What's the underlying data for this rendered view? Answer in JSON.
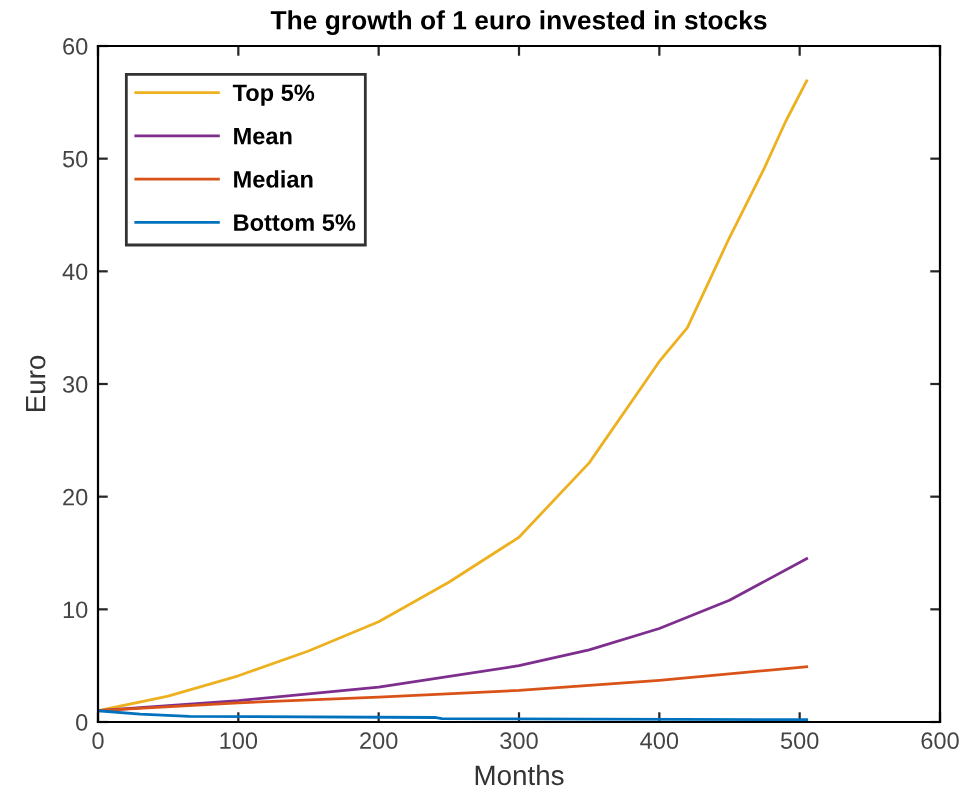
{
  "chart_data": {
    "type": "line",
    "title": "The growth of 1 euro invested in stocks",
    "xlabel": "Months",
    "ylabel": "Euro",
    "xlim": [
      0,
      600
    ],
    "xticks": [
      0,
      100,
      200,
      300,
      400,
      500,
      600
    ],
    "ylim": [
      0,
      60
    ],
    "yticks": [
      0,
      10,
      20,
      30,
      40,
      50,
      60
    ],
    "grid": false,
    "legend": "top left",
    "marker": "none",
    "line_style": "solid",
    "series": [
      {
        "name": "Top 5%",
        "color": "#edb120",
        "x": [
          0,
          50,
          100,
          150,
          200,
          250,
          300,
          350,
          400,
          420,
          450,
          475,
          490,
          505
        ],
        "values": [
          1,
          2.3,
          4.1,
          6.3,
          8.9,
          12.4,
          16.4,
          23,
          32,
          35,
          43,
          49.2,
          53.3,
          56.9
        ]
      },
      {
        "name": "Mean",
        "color": "#7e2f8e",
        "x": [
          0,
          100,
          200,
          300,
          350,
          400,
          450,
          505
        ],
        "values": [
          1,
          1.9,
          3.1,
          5.0,
          6.4,
          8.3,
          10.8,
          14.5
        ]
      },
      {
        "name": "Median",
        "color": "#d95319",
        "x": [
          0,
          100,
          200,
          300,
          400,
          505
        ],
        "values": [
          1,
          1.7,
          2.2,
          2.8,
          3.7,
          4.9
        ]
      },
      {
        "name": "Bottom 5%",
        "color": "#0072bd",
        "x": [
          0,
          30,
          65,
          240,
          245,
          505
        ],
        "values": [
          1,
          0.7,
          0.5,
          0.4,
          0.3,
          0.2
        ]
      }
    ]
  }
}
